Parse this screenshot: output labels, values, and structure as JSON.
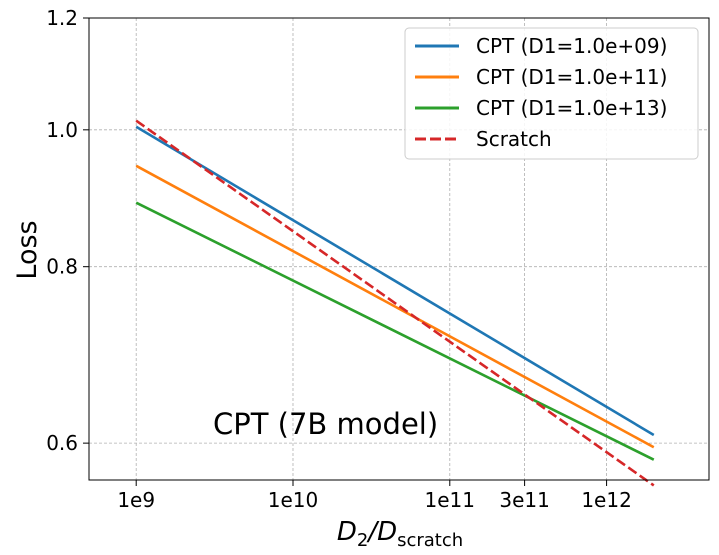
{
  "chart_data": {
    "type": "line",
    "xscale": "log",
    "yscale": "log",
    "xlabel_main": "D",
    "xlabel_sub1": "2",
    "xlabel_slash": "/D",
    "xlabel_sub2": "scratch",
    "ylabel": "Loss",
    "annotation": "CPT (7B model)",
    "xlim": [
      500000000.0,
      4500000000000.0
    ],
    "ylim": [
      0.565,
      1.2
    ],
    "xticks": [
      {
        "value": 1000000000.0,
        "label": "1e9"
      },
      {
        "value": 10000000000.0,
        "label": "1e10"
      },
      {
        "value": 100000000000.0,
        "label": "1e11"
      },
      {
        "value": 300000000000.0,
        "label": "3e11"
      },
      {
        "value": 1000000000000.0,
        "label": "1e12"
      }
    ],
    "yticks": [
      {
        "value": 0.6,
        "label": "0.6"
      },
      {
        "value": 0.8,
        "label": "0.8"
      },
      {
        "value": 1.0,
        "label": "1.0"
      },
      {
        "value": 1.2,
        "label": "1.2"
      }
    ],
    "grid": true,
    "legend_position": "top-right",
    "series": [
      {
        "name": "CPT (D1=1.0e+09)",
        "color": "#1f77b4",
        "dash": "solid",
        "x": [
          1000000000.0,
          2000000000000.0
        ],
        "y": [
          1.005,
          0.608
        ]
      },
      {
        "name": "CPT (D1=1.0e+11)",
        "color": "#ff7f0e",
        "dash": "solid",
        "x": [
          1000000000.0,
          2000000000000.0
        ],
        "y": [
          0.943,
          0.596
        ]
      },
      {
        "name": "CPT (D1=1.0e+13)",
        "color": "#2ca02c",
        "dash": "solid",
        "x": [
          1000000000.0,
          2000000000000.0
        ],
        "y": [
          0.888,
          0.584
        ]
      },
      {
        "name": "Scratch",
        "color": "#d62728",
        "dash": "dashed",
        "x": [
          1000000000.0,
          2000000000000.0
        ],
        "y": [
          1.015,
          0.56
        ]
      }
    ]
  }
}
